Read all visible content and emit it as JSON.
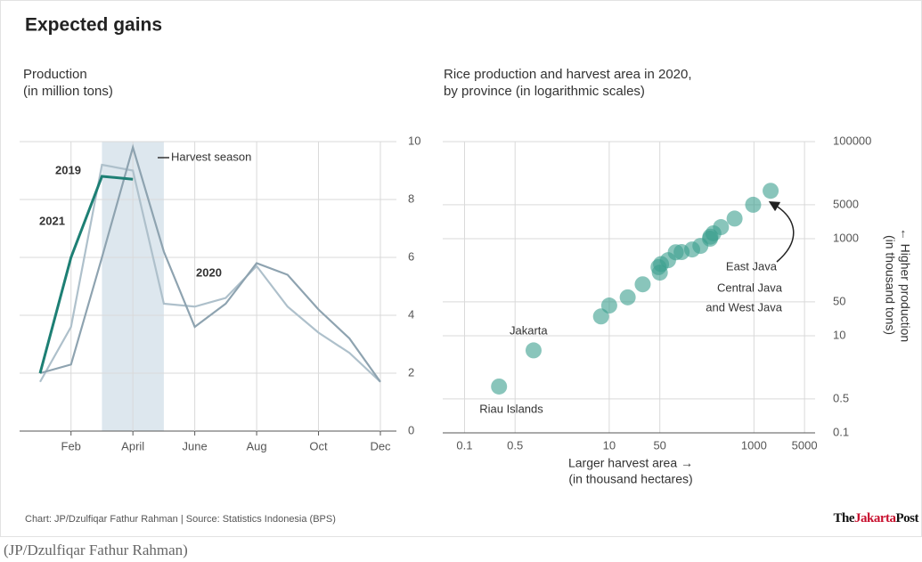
{
  "title": "Expected gains",
  "source": "Chart: JP/Dzulfiqar Fathur Rahman | Source: Statistics Indonesia (BPS)",
  "logo": [
    "The",
    "Jakarta",
    "Post"
  ],
  "caption": "(JP/Dzulfiqar Fathur Rahman)",
  "chart_data": [
    {
      "type": "line",
      "title": [
        "Production",
        "(in million tons)"
      ],
      "categories": [
        null,
        "Feb",
        null,
        "April",
        null,
        "June",
        null,
        "Aug",
        null,
        "Oct",
        null,
        "Dec"
      ],
      "series": [
        {
          "name": "2019",
          "color": "#aec0cb",
          "values": [
            1.7,
            3.6,
            9.2,
            9.0,
            4.4,
            4.3,
            4.6,
            5.7,
            4.3,
            3.4,
            2.7,
            1.7
          ]
        },
        {
          "name": "2020",
          "color": "#8ea3b0",
          "values": [
            2.0,
            2.3,
            6.0,
            9.8,
            6.2,
            3.6,
            4.4,
            5.8,
            5.4,
            4.2,
            3.2,
            1.7
          ]
        },
        {
          "name": "2021",
          "color": "#1d7f74",
          "values": [
            2.0,
            6.0,
            8.8,
            8.7,
            null,
            null,
            null,
            null,
            null,
            null,
            null,
            null
          ]
        }
      ],
      "highlight": {
        "label": "Harvest season",
        "from": 2,
        "to": 4,
        "color": "#dde7ee"
      },
      "ylim": [
        0,
        10
      ],
      "yticks": [
        0,
        2,
        4,
        6,
        8,
        10
      ],
      "grid": true
    },
    {
      "type": "scatter",
      "title": [
        "Rice production and harvest area in 2020,",
        "by province (in logarithmic scales)"
      ],
      "xlabel": [
        "Larger harvest area →",
        "(in thousand hectares)"
      ],
      "ylabel": [
        "← Higher production",
        "(in thousand tons)"
      ],
      "log_x": true,
      "log_y": true,
      "color": "#3a9e8e",
      "x": [
        0.3,
        0.9,
        7.7,
        10,
        18,
        29,
        50,
        52,
        65,
        83,
        100,
        140,
        182,
        247,
        275,
        350,
        540,
        975,
        1700,
        48,
        250
      ],
      "y": [
        0.9,
        5,
        25,
        42,
        62,
        115,
        200,
        300,
        360,
        525,
        530,
        600,
        710,
        1000,
        1290,
        1730,
        2600,
        5000,
        9700,
        260,
        1100
      ],
      "annotations": [
        "Jakarta",
        "Riau Islands",
        "East Java",
        "Central Java",
        "and West Java"
      ],
      "xlim": [
        0.05,
        7000
      ],
      "xticks": [
        0.1,
        0.5,
        10,
        50,
        1000,
        5000
      ],
      "ylim": [
        0.1,
        100000
      ],
      "yticks": [
        0.1,
        0.5,
        10,
        50,
        1000,
        5000,
        100000
      ],
      "grid": true
    }
  ]
}
